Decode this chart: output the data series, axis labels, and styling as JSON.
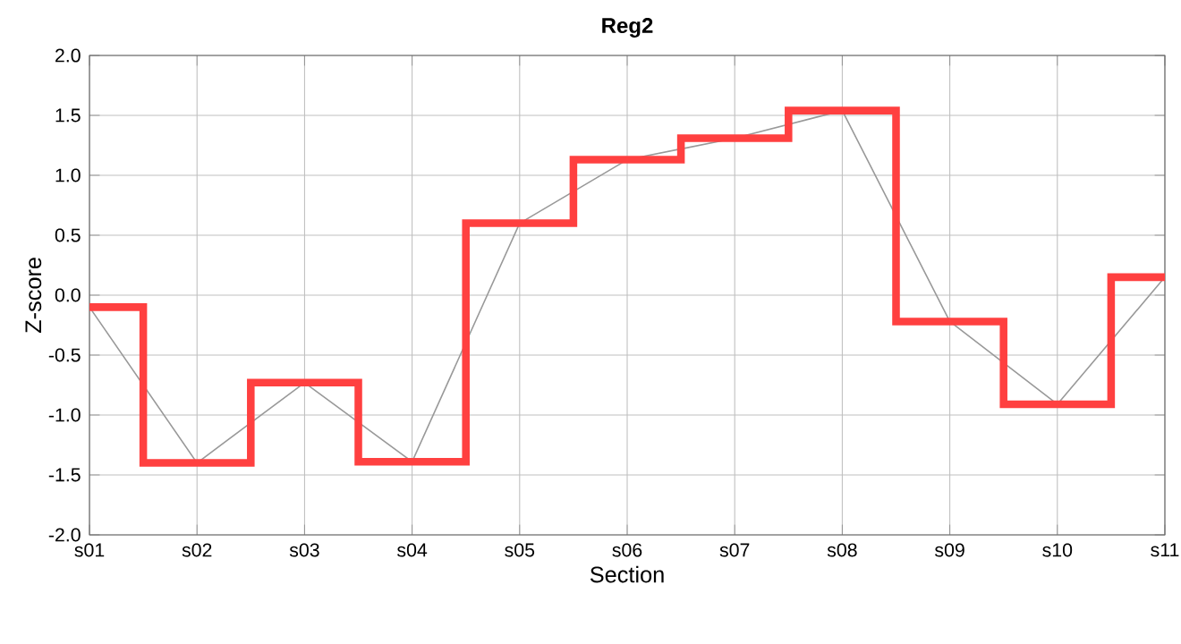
{
  "chart_data": {
    "type": "line",
    "title": "Reg2",
    "xlabel": "Section",
    "ylabel": "Z-score",
    "categories": [
      "s01",
      "s02",
      "s03",
      "s04",
      "s05",
      "s06",
      "s07",
      "s08",
      "s09",
      "s10",
      "s11"
    ],
    "series": [
      {
        "color": "#999999",
        "values": [
          -0.1,
          -1.4,
          -0.73,
          -1.39,
          0.6,
          1.13,
          1.31,
          1.54,
          -0.22,
          -0.91,
          0.15
        ]
      },
      {
        "type": "step",
        "color": "#ff4040",
        "values": [
          -0.1,
          -1.4,
          -0.73,
          -1.39,
          0.6,
          1.13,
          1.31,
          1.54,
          -0.22,
          -0.91,
          0.15
        ]
      }
    ],
    "ylim": [
      -2,
      2
    ],
    "yticks": [
      {
        "value": -2,
        "label": "-2.0"
      },
      {
        "value": -1.5,
        "label": "-1.5"
      },
      {
        "value": -1,
        "label": "-1.0"
      },
      {
        "value": -0.5,
        "label": "-0.5"
      },
      {
        "value": 0,
        "label": "0.0"
      },
      {
        "value": 0.5,
        "label": "0.5"
      },
      {
        "value": 1,
        "label": "1.0"
      },
      {
        "value": 1.5,
        "label": "1.5"
      },
      {
        "value": 2,
        "label": "2.0"
      }
    ],
    "grid": true,
    "marker": "none"
  }
}
